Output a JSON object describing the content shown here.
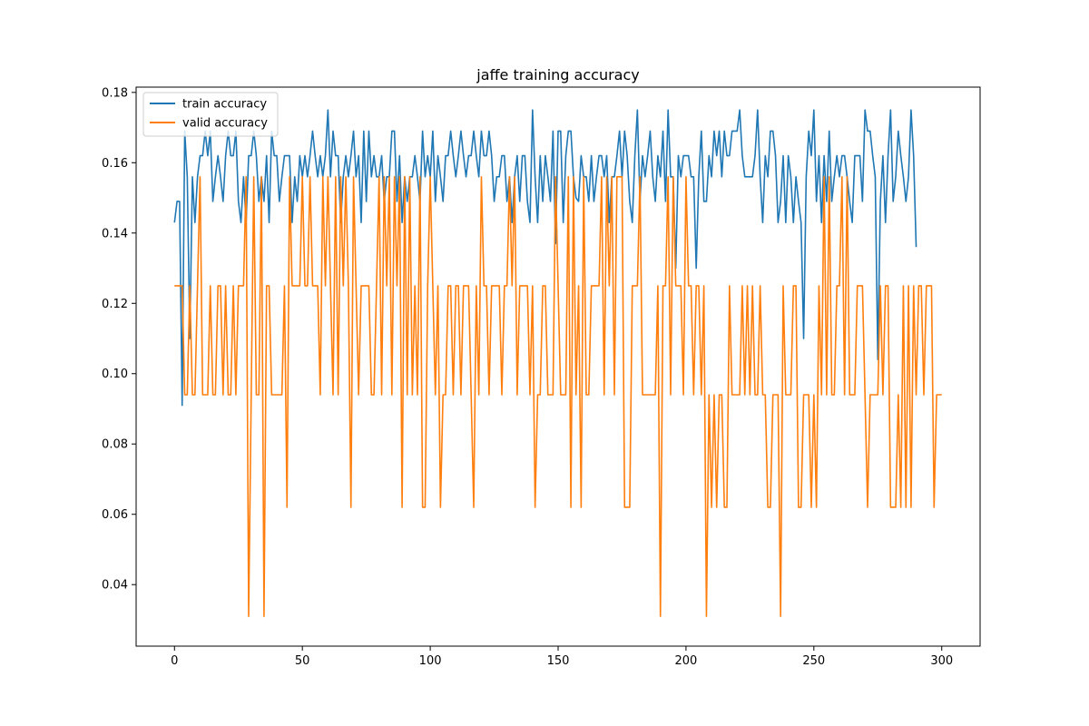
{
  "chart_data": {
    "type": "line",
    "title": "jaffe training accuracy",
    "xlabel": "",
    "ylabel": "",
    "xlim": [
      -15,
      315
    ],
    "ylim": [
      0.0225,
      0.1815
    ],
    "xticks": [
      0,
      50,
      100,
      150,
      200,
      250,
      300
    ],
    "xtick_labels": [
      "0",
      "50",
      "100",
      "150",
      "200",
      "250",
      "300"
    ],
    "yticks": [
      0.04,
      0.06,
      0.08,
      0.1,
      0.12,
      0.14,
      0.16,
      0.18
    ],
    "ytick_labels": [
      "0.04",
      "0.06",
      "0.08",
      "0.10",
      "0.12",
      "0.14",
      "0.16",
      "0.18"
    ],
    "grid": false,
    "legend_position": "upper left",
    "series": [
      {
        "name": "train accuracy",
        "color": "#1f77b4",
        "values": [
          0.143,
          0.149,
          0.149,
          0.091,
          0.169,
          0.156,
          0.11,
          0.156,
          0.143,
          0.156,
          0.162,
          0.162,
          0.169,
          0.162,
          0.169,
          0.149,
          0.156,
          0.162,
          0.156,
          0.149,
          0.162,
          0.169,
          0.162,
          0.162,
          0.169,
          0.149,
          0.143,
          0.156,
          0.143,
          0.162,
          0.162,
          0.169,
          0.162,
          0.149,
          0.156,
          0.149,
          0.162,
          0.143,
          0.169,
          0.162,
          0.162,
          0.149,
          0.156,
          0.162,
          0.162,
          0.162,
          0.143,
          0.156,
          0.149,
          0.162,
          0.156,
          0.162,
          0.156,
          0.162,
          0.169,
          0.162,
          0.156,
          0.162,
          0.156,
          0.162,
          0.175,
          0.156,
          0.169,
          0.162,
          0.162,
          0.143,
          0.156,
          0.162,
          0.156,
          0.162,
          0.169,
          0.156,
          0.162,
          0.143,
          0.169,
          0.149,
          0.169,
          0.156,
          0.162,
          0.156,
          0.156,
          0.162,
          0.149,
          0.156,
          0.156,
          0.169,
          0.169,
          0.149,
          0.162,
          0.143,
          0.156,
          0.149,
          0.156,
          0.156,
          0.162,
          0.156,
          0.149,
          0.169,
          0.156,
          0.162,
          0.156,
          0.169,
          0.149,
          0.162,
          0.156,
          0.149,
          0.162,
          0.162,
          0.169,
          0.162,
          0.156,
          0.162,
          0.169,
          0.162,
          0.156,
          0.162,
          0.162,
          0.169,
          0.162,
          0.156,
          0.169,
          0.162,
          0.162,
          0.169,
          0.162,
          0.149,
          0.156,
          0.156,
          0.162,
          0.162,
          0.149,
          0.156,
          0.143,
          0.156,
          0.162,
          0.149,
          0.162,
          0.162,
          0.149,
          0.143,
          0.175,
          0.156,
          0.143,
          0.162,
          0.149,
          0.162,
          0.156,
          0.149,
          0.169,
          0.137,
          0.169,
          0.169,
          0.143,
          0.162,
          0.169,
          0.169,
          0.156,
          0.15,
          0.149,
          0.162,
          0.156,
          0.156,
          0.149,
          0.162,
          0.149,
          0.156,
          0.162,
          0.162,
          0.156,
          0.162,
          0.143,
          0.156,
          0.156,
          0.162,
          0.169,
          0.156,
          0.169,
          0.162,
          0.149,
          0.143,
          0.162,
          0.175,
          0.149,
          0.162,
          0.156,
          0.162,
          0.169,
          0.156,
          0.149,
          0.162,
          0.156,
          0.169,
          0.149,
          0.175,
          0.156,
          0.156,
          0.13,
          0.162,
          0.156,
          0.162,
          0.162,
          0.162,
          0.156,
          0.156,
          0.13,
          0.156,
          0.169,
          0.149,
          0.149,
          0.162,
          0.156,
          0.169,
          0.162,
          0.169,
          0.156,
          0.169,
          0.162,
          0.162,
          0.169,
          0.169,
          0.169,
          0.175,
          0.162,
          0.156,
          0.156,
          0.156,
          0.156,
          0.162,
          0.175,
          0.156,
          0.143,
          0.162,
          0.156,
          0.169,
          0.169,
          0.162,
          0.143,
          0.149,
          0.162,
          0.143,
          0.162,
          0.156,
          0.143,
          0.156,
          0.149,
          0.143,
          0.11,
          0.156,
          0.169,
          0.162,
          0.175,
          0.149,
          0.162,
          0.143,
          0.162,
          0.149,
          0.169,
          0.149,
          0.156,
          0.162,
          0.156,
          0.162,
          0.162,
          0.156,
          0.149,
          0.143,
          0.162,
          0.162,
          0.162,
          0.149,
          0.175,
          0.169,
          0.169,
          0.162,
          0.156,
          0.104,
          0.149,
          0.162,
          0.143,
          0.162,
          0.175,
          0.149,
          0.156,
          0.169,
          0.162,
          0.156,
          0.149,
          0.156,
          0.175,
          0.162,
          0.136
        ]
      },
      {
        "name": "valid accuracy",
        "color": "#ff7f0e",
        "values": [
          0.125,
          0.125,
          0.125,
          0.125,
          0.094,
          0.094,
          0.125,
          0.094,
          0.094,
          0.125,
          0.156,
          0.094,
          0.094,
          0.094,
          0.125,
          0.094,
          0.094,
          0.125,
          0.125,
          0.094,
          0.125,
          0.094,
          0.094,
          0.125,
          0.094,
          0.125,
          0.125,
          0.125,
          0.156,
          0.031,
          0.094,
          0.156,
          0.094,
          0.094,
          0.156,
          0.031,
          0.125,
          0.125,
          0.094,
          0.094,
          0.094,
          0.094,
          0.094,
          0.125,
          0.062,
          0.156,
          0.125,
          0.125,
          0.125,
          0.125,
          0.156,
          0.125,
          0.125,
          0.156,
          0.125,
          0.125,
          0.125,
          0.094,
          0.156,
          0.125,
          0.156,
          0.125,
          0.094,
          0.156,
          0.094,
          0.156,
          0.125,
          0.156,
          0.125,
          0.062,
          0.156,
          0.125,
          0.094,
          0.125,
          0.125,
          0.125,
          0.125,
          0.094,
          0.094,
          0.125,
          0.156,
          0.094,
          0.156,
          0.125,
          0.156,
          0.094,
          0.156,
          0.125,
          0.156,
          0.062,
          0.156,
          0.094,
          0.156,
          0.094,
          0.125,
          0.094,
          0.156,
          0.062,
          0.062,
          0.125,
          0.156,
          0.125,
          0.094,
          0.125,
          0.062,
          0.094,
          0.094,
          0.125,
          0.125,
          0.094,
          0.125,
          0.125,
          0.094,
          0.125,
          0.125,
          0.125,
          0.094,
          0.062,
          0.125,
          0.094,
          0.156,
          0.125,
          0.125,
          0.094,
          0.125,
          0.125,
          0.125,
          0.125,
          0.094,
          0.125,
          0.125,
          0.156,
          0.125,
          0.156,
          0.094,
          0.125,
          0.125,
          0.125,
          0.125,
          0.094,
          0.125,
          0.062,
          0.094,
          0.094,
          0.125,
          0.125,
          0.094,
          0.094,
          0.094,
          0.156,
          0.125,
          0.094,
          0.094,
          0.094,
          0.156,
          0.062,
          0.156,
          0.094,
          0.125,
          0.062,
          0.156,
          0.094,
          0.094,
          0.125,
          0.125,
          0.125,
          0.125,
          0.156,
          0.094,
          0.156,
          0.125,
          0.156,
          0.094,
          0.156,
          0.156,
          0.156,
          0.062,
          0.062,
          0.062,
          0.125,
          0.125,
          0.125,
          0.156,
          0.094,
          0.094,
          0.094,
          0.094,
          0.094,
          0.094,
          0.125,
          0.031,
          0.125,
          0.125,
          0.156,
          0.094,
          0.156,
          0.125,
          0.125,
          0.125,
          0.094,
          0.156,
          0.125,
          0.125,
          0.094,
          0.125,
          0.125,
          0.094,
          0.125,
          0.031,
          0.094,
          0.062,
          0.094,
          0.062,
          0.094,
          0.094,
          0.062,
          0.062,
          0.125,
          0.094,
          0.094,
          0.094,
          0.094,
          0.125,
          0.094,
          0.125,
          0.094,
          0.125,
          0.094,
          0.094,
          0.125,
          0.094,
          0.094,
          0.062,
          0.062,
          0.094,
          0.094,
          0.094,
          0.031,
          0.125,
          0.094,
          0.094,
          0.094,
          0.125,
          0.125,
          0.062,
          0.062,
          0.094,
          0.094,
          0.094,
          0.062,
          0.094,
          0.062,
          0.125,
          0.094,
          0.156,
          0.094,
          0.156,
          0.094,
          0.094,
          0.125,
          0.125,
          0.156,
          0.094,
          0.156,
          0.094,
          0.094,
          0.094,
          0.125,
          0.125,
          0.125,
          0.094,
          0.062,
          0.094,
          0.094,
          0.094,
          0.094,
          0.125,
          0.094,
          0.125,
          0.125,
          0.062,
          0.062,
          0.062,
          0.094,
          0.062,
          0.125,
          0.062,
          0.125,
          0.062,
          0.125,
          0.094,
          0.125,
          0.125,
          0.094,
          0.125,
          0.125,
          0.125,
          0.062,
          0.094,
          0.094,
          0.094
        ]
      }
    ]
  }
}
